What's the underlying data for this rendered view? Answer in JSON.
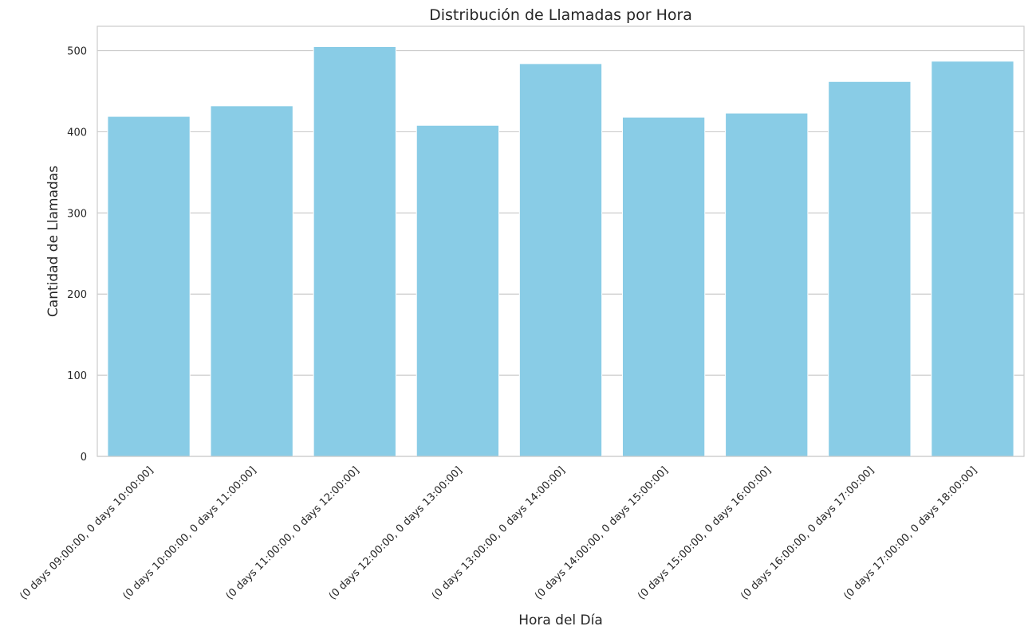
{
  "chart_data": {
    "type": "bar",
    "title": "Distribución de Llamadas por Hora",
    "xlabel": "Hora del Día",
    "ylabel": "Cantidad de Llamadas",
    "categories": [
      "(0 days 09:00:00, 0 days 10:00:00]",
      "(0 days 10:00:00, 0 days 11:00:00]",
      "(0 days 11:00:00, 0 days 12:00:00]",
      "(0 days 12:00:00, 0 days 13:00:00]",
      "(0 days 13:00:00, 0 days 14:00:00]",
      "(0 days 14:00:00, 0 days 15:00:00]",
      "(0 days 15:00:00, 0 days 16:00:00]",
      "(0 days 16:00:00, 0 days 17:00:00]",
      "(0 days 17:00:00, 0 days 18:00:00]"
    ],
    "values": [
      419,
      432,
      505,
      408,
      484,
      418,
      423,
      462,
      487
    ],
    "ylim": [
      0,
      530
    ],
    "yticks": [
      0,
      100,
      200,
      300,
      400,
      500
    ],
    "bar_color": "#89cce6",
    "grid": true,
    "legend": "none"
  }
}
